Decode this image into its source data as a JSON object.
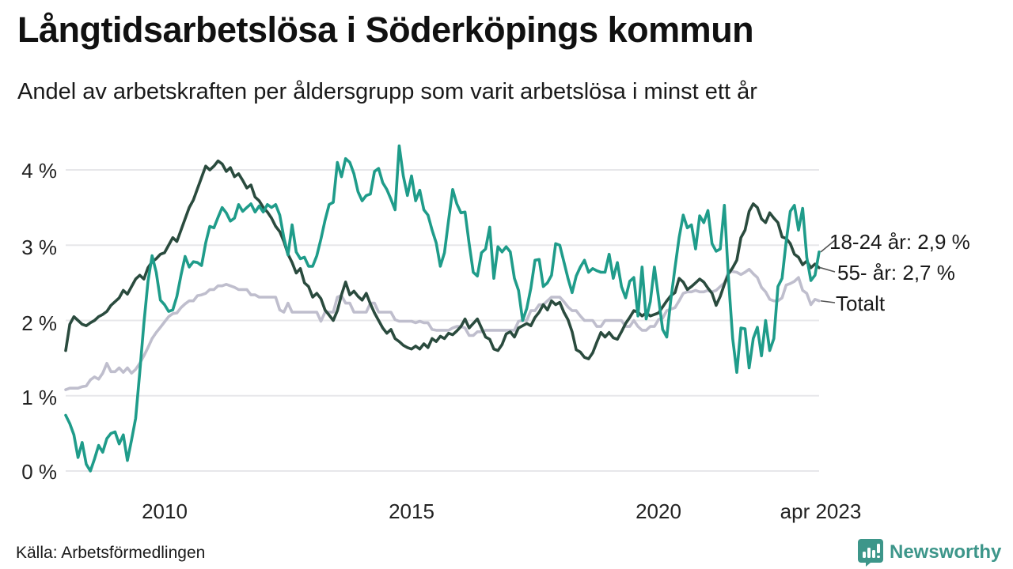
{
  "header": {
    "title": "Långtidsarbetslösa i Söderköpings kommun",
    "subtitle": "Andel av arbetskraften per åldersgrupp som varit arbetslösa i minst ett år"
  },
  "footer": {
    "source": "Källa: Arbetsförmedlingen",
    "logo_text": "Newsworthy",
    "logo_color": "#3d968a",
    "logo_icon": "bar-chart-marker-icon"
  },
  "chart_data": {
    "type": "line",
    "title": "Långtidsarbetslösa i Söderköpings kommun",
    "subtitle": "Andel av arbetskraften per åldersgrupp som varit arbetslösa i minst ett år",
    "x_start": "2008-01",
    "x_end": "2023-04",
    "frequency": "monthly",
    "xticks": [
      {
        "label": "2010",
        "year": 2010
      },
      {
        "label": "2015",
        "year": 2015
      },
      {
        "label": "2020",
        "year": 2020
      },
      {
        "label": "apr 2023",
        "year": 2023.25
      }
    ],
    "yticks": [
      "0 %",
      "1 %",
      "2 %",
      "3 %",
      "4 %"
    ],
    "ylim": [
      0,
      4.5
    ],
    "grid": "horizontal",
    "grid_color": "#e7e7ea",
    "legend_position": "line-end-labels",
    "series": [
      {
        "name": "Totalt",
        "end_label": "Totalt",
        "last_value": 2.3,
        "color": "#bfbecd",
        "values": [
          1.08,
          1.1,
          1.1,
          1.1,
          1.12,
          1.13,
          1.21,
          1.25,
          1.22,
          1.3,
          1.43,
          1.32,
          1.32,
          1.37,
          1.31,
          1.37,
          1.3,
          1.35,
          1.43,
          1.53,
          1.64,
          1.76,
          1.84,
          1.91,
          1.98,
          2.05,
          2.09,
          2.1,
          2.17,
          2.22,
          2.26,
          2.26,
          2.33,
          2.34,
          2.36,
          2.41,
          2.41,
          2.46,
          2.46,
          2.48,
          2.46,
          2.44,
          2.41,
          2.41,
          2.41,
          2.34,
          2.34,
          2.31,
          2.31,
          2.31,
          2.31,
          2.31,
          2.14,
          2.11,
          2.23,
          2.11,
          2.11,
          2.11,
          2.11,
          2.11,
          2.11,
          2.11,
          1.99,
          2.11,
          2.11,
          2.11,
          2.31,
          2.33,
          2.23,
          2.23,
          2.11,
          2.11,
          2.11,
          2.11,
          2.23,
          2.23,
          2.11,
          2.11,
          2.11,
          2.11,
          2.01,
          1.99,
          1.99,
          1.99,
          1.99,
          1.97,
          1.99,
          1.97,
          1.97,
          1.88,
          1.87,
          1.87,
          1.87,
          1.87,
          1.9,
          1.92,
          1.92,
          1.9,
          1.8,
          1.8,
          1.85,
          1.85,
          1.87,
          1.87,
          1.87,
          1.87,
          1.87,
          1.87,
          1.87,
          1.87,
          1.99,
          2.0,
          2.0,
          2.13,
          2.13,
          2.21,
          2.21,
          2.26,
          2.31,
          2.31,
          2.31,
          2.25,
          2.18,
          2.13,
          2.13,
          2.06,
          2.0,
          2.0,
          2.0,
          1.92,
          1.92,
          2.0,
          2.0,
          2.0,
          2.0,
          2.0,
          1.92,
          1.92,
          2.0,
          1.92,
          1.87,
          1.87,
          1.92,
          1.92,
          2.01,
          2.03,
          2.13,
          2.15,
          2.17,
          2.26,
          2.36,
          2.38,
          2.38,
          2.4,
          2.38,
          2.38,
          2.4,
          2.38,
          2.4,
          2.45,
          2.5,
          2.65,
          2.65,
          2.64,
          2.61,
          2.64,
          2.68,
          2.62,
          2.57,
          2.44,
          2.38,
          2.28,
          2.26,
          2.26,
          2.3,
          2.47,
          2.49,
          2.52,
          2.57,
          2.4,
          2.36,
          2.21,
          2.28,
          2.26
        ]
      },
      {
        "name": "55- år",
        "end_label": "55- år: 2,7 %",
        "last_value": 2.7,
        "color": "#2a4b3e",
        "values": [
          1.6,
          1.95,
          2.05,
          2.0,
          1.95,
          1.93,
          1.97,
          2.0,
          2.05,
          2.08,
          2.12,
          2.2,
          2.25,
          2.3,
          2.4,
          2.35,
          2.45,
          2.55,
          2.6,
          2.55,
          2.7,
          2.78,
          2.82,
          2.88,
          2.9,
          3.0,
          3.1,
          3.05,
          3.2,
          3.35,
          3.5,
          3.6,
          3.75,
          3.9,
          4.05,
          4.0,
          4.05,
          4.12,
          4.08,
          3.98,
          4.03,
          3.91,
          3.95,
          3.86,
          3.76,
          3.8,
          3.64,
          3.59,
          3.5,
          3.44,
          3.36,
          3.25,
          3.18,
          3.05,
          2.88,
          2.77,
          2.63,
          2.69,
          2.5,
          2.45,
          2.31,
          2.36,
          2.29,
          2.14,
          2.07,
          2.0,
          2.13,
          2.34,
          2.51,
          2.34,
          2.39,
          2.32,
          2.27,
          2.36,
          2.22,
          2.1,
          2.0,
          1.9,
          1.83,
          1.88,
          1.76,
          1.72,
          1.67,
          1.64,
          1.62,
          1.66,
          1.62,
          1.69,
          1.64,
          1.76,
          1.72,
          1.79,
          1.76,
          1.83,
          1.81,
          1.86,
          1.92,
          2.02,
          1.9,
          1.96,
          2.02,
          1.9,
          1.78,
          1.75,
          1.62,
          1.6,
          1.68,
          1.82,
          1.85,
          1.78,
          1.9,
          1.93,
          1.96,
          1.93,
          2.04,
          2.11,
          2.21,
          2.14,
          2.26,
          2.21,
          2.24,
          2.11,
          2.01,
          1.85,
          1.61,
          1.58,
          1.51,
          1.49,
          1.57,
          1.71,
          1.84,
          1.78,
          1.84,
          1.77,
          1.75,
          1.85,
          1.96,
          2.04,
          2.13,
          2.11,
          2.06,
          2.1,
          2.06,
          2.08,
          2.1,
          2.18,
          2.26,
          2.33,
          2.37,
          2.56,
          2.51,
          2.41,
          2.45,
          2.5,
          2.55,
          2.51,
          2.43,
          2.36,
          2.2,
          2.32,
          2.48,
          2.62,
          2.7,
          2.8,
          3.1,
          3.2,
          3.45,
          3.55,
          3.5,
          3.35,
          3.3,
          3.43,
          3.36,
          3.3,
          3.11,
          3.09,
          3.02,
          2.88,
          2.84,
          2.74,
          2.79,
          2.7,
          2.75,
          2.7
        ]
      },
      {
        "name": "18-24 år",
        "end_label": "18-24 år: 2,9 %",
        "last_value": 2.9,
        "color": "#1f9c8a",
        "values": [
          0.74,
          0.63,
          0.48,
          0.18,
          0.38,
          0.09,
          0.0,
          0.16,
          0.34,
          0.25,
          0.43,
          0.5,
          0.52,
          0.36,
          0.48,
          0.14,
          0.41,
          0.7,
          1.31,
          1.96,
          2.52,
          2.86,
          2.64,
          2.27,
          2.21,
          2.12,
          2.14,
          2.32,
          2.6,
          2.85,
          2.71,
          2.78,
          2.77,
          2.73,
          3.03,
          3.25,
          3.23,
          3.37,
          3.5,
          3.43,
          3.32,
          3.36,
          3.54,
          3.45,
          3.5,
          3.55,
          3.44,
          3.52,
          3.44,
          3.54,
          3.5,
          3.54,
          3.4,
          3.1,
          2.87,
          3.27,
          2.91,
          2.82,
          2.84,
          2.72,
          2.72,
          2.86,
          3.08,
          3.33,
          3.54,
          3.57,
          4.1,
          3.91,
          4.15,
          4.1,
          3.95,
          3.71,
          3.59,
          3.66,
          3.68,
          3.98,
          4.02,
          3.83,
          3.74,
          3.61,
          3.47,
          4.32,
          3.92,
          3.66,
          3.92,
          3.59,
          3.73,
          3.47,
          3.4,
          3.2,
          3.03,
          2.72,
          2.9,
          3.33,
          3.74,
          3.55,
          3.43,
          3.44,
          3.02,
          2.64,
          2.59,
          2.9,
          2.95,
          3.24,
          2.56,
          2.98,
          2.91,
          2.98,
          2.91,
          2.56,
          2.4,
          2.0,
          2.16,
          2.43,
          2.8,
          2.81,
          2.45,
          2.5,
          2.6,
          3.02,
          3.0,
          2.78,
          2.56,
          2.37,
          2.59,
          2.71,
          2.8,
          2.64,
          2.69,
          2.66,
          2.64,
          2.64,
          2.88,
          2.56,
          2.77,
          2.45,
          2.3,
          2.52,
          2.57,
          2.06,
          2.71,
          2.02,
          2.25,
          2.71,
          2.3,
          1.88,
          1.78,
          2.28,
          2.7,
          3.1,
          3.4,
          3.23,
          3.27,
          2.95,
          3.39,
          3.3,
          3.46,
          3.02,
          2.92,
          2.95,
          3.53,
          2.54,
          1.76,
          1.31,
          1.9,
          1.89,
          1.37,
          1.76,
          1.91,
          1.53,
          2.0,
          1.6,
          1.76,
          2.45,
          2.56,
          3.05,
          3.45,
          3.53,
          3.2,
          3.49,
          2.84,
          2.53,
          2.6,
          2.91
        ]
      }
    ]
  }
}
